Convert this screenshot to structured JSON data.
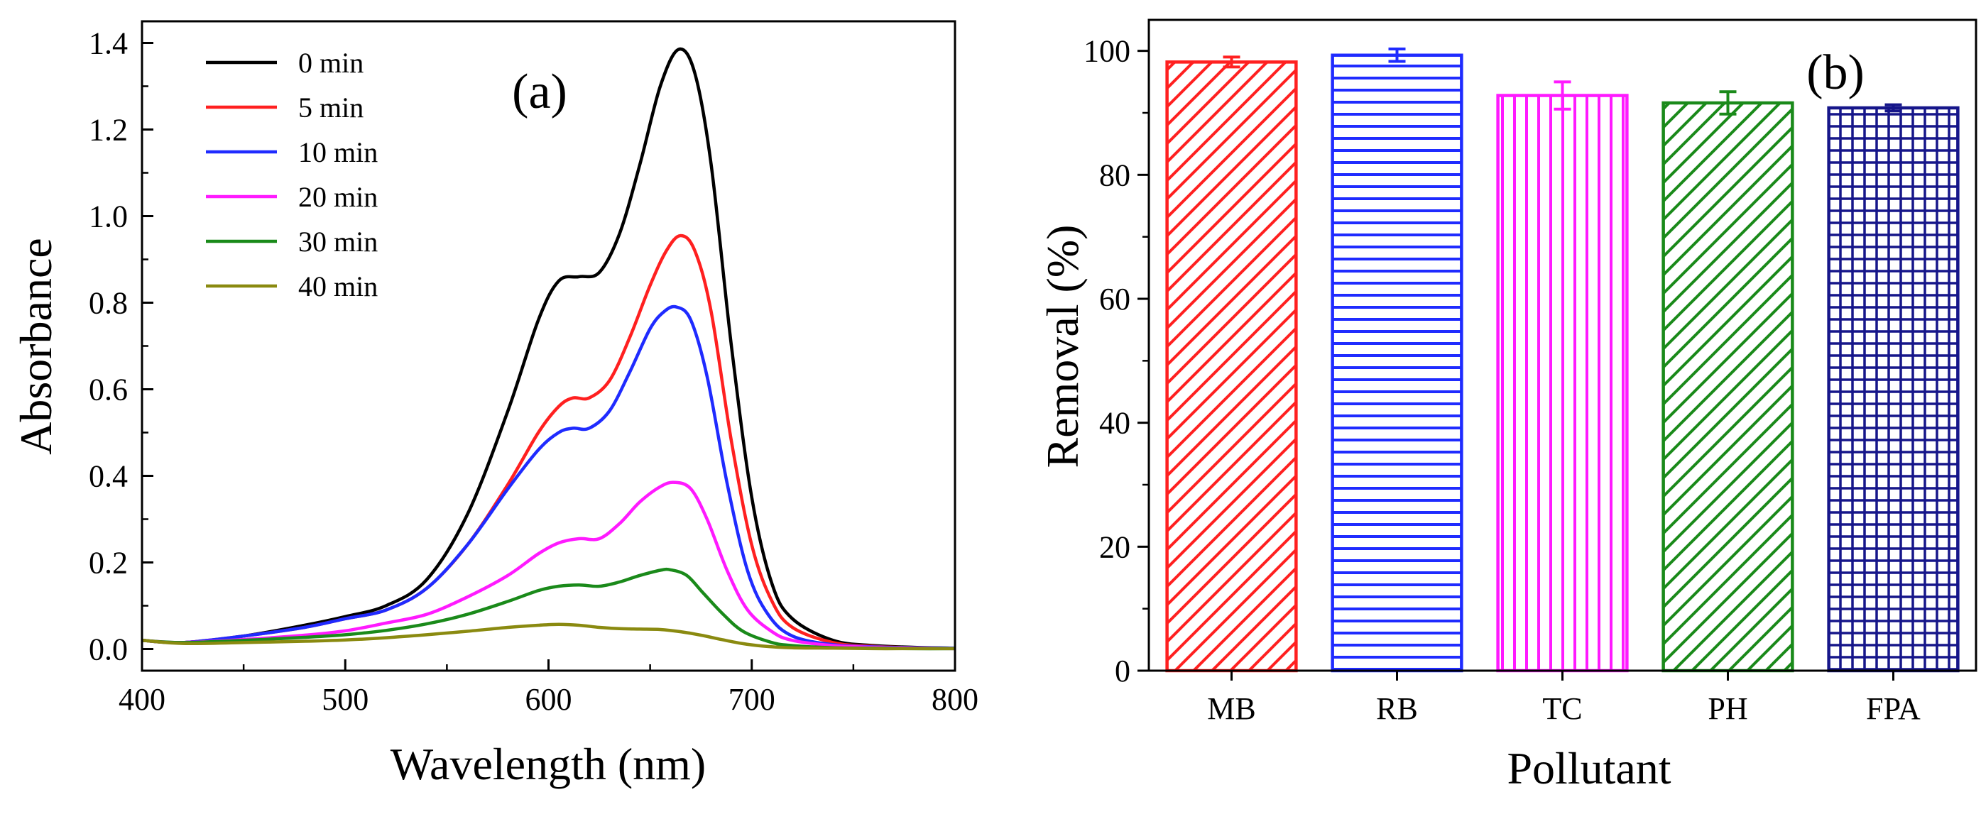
{
  "chart_data": [
    {
      "type": "line",
      "panel_label": "(a)",
      "title": "",
      "xlabel": "Wavelength (nm)",
      "ylabel": "Absorbance",
      "xlim": [
        400,
        800
      ],
      "ylim": [
        -0.05,
        1.45
      ],
      "xticks": [
        400,
        500,
        600,
        700,
        800
      ],
      "yticks": [
        0.0,
        0.2,
        0.4,
        0.6,
        0.8,
        1.0,
        1.2,
        1.4
      ],
      "xtick_labels": [
        "400",
        "500",
        "600",
        "700",
        "800"
      ],
      "ytick_labels": [
        "0.0",
        "0.2",
        "0.4",
        "0.6",
        "0.8",
        "1.0",
        "1.2",
        "1.4"
      ],
      "legend_position": "top-left",
      "series": [
        {
          "name": "0 min",
          "color": "#000000",
          "x": [
            400,
            420,
            450,
            480,
            500,
            520,
            540,
            560,
            580,
            595,
            605,
            615,
            625,
            635,
            645,
            655,
            664,
            672,
            680,
            690,
            700,
            710,
            720,
            740,
            760,
            780,
            800
          ],
          "y": [
            0.02,
            0.015,
            0.03,
            0.055,
            0.075,
            0.1,
            0.16,
            0.31,
            0.55,
            0.76,
            0.85,
            0.86,
            0.87,
            0.96,
            1.12,
            1.3,
            1.385,
            1.33,
            1.12,
            0.7,
            0.35,
            0.15,
            0.07,
            0.02,
            0.008,
            0.004,
            0.002
          ]
        },
        {
          "name": "5 min",
          "color": "#ff2020",
          "x": [
            400,
            420,
            450,
            480,
            500,
            520,
            540,
            560,
            580,
            595,
            605,
            612,
            620,
            630,
            640,
            650,
            658,
            665,
            672,
            680,
            690,
            700,
            710,
            720,
            740,
            760,
            780,
            800
          ],
          "y": [
            0.02,
            0.015,
            0.03,
            0.05,
            0.07,
            0.09,
            0.14,
            0.24,
            0.38,
            0.5,
            0.56,
            0.58,
            0.58,
            0.62,
            0.72,
            0.84,
            0.92,
            0.955,
            0.92,
            0.78,
            0.48,
            0.24,
            0.11,
            0.05,
            0.015,
            0.006,
            0.003,
            0.002
          ]
        },
        {
          "name": "10 min",
          "color": "#1f2bff",
          "x": [
            400,
            420,
            450,
            480,
            500,
            520,
            540,
            560,
            580,
            595,
            605,
            612,
            620,
            630,
            640,
            650,
            657,
            663,
            670,
            678,
            688,
            698,
            708,
            720,
            740,
            760,
            780,
            800
          ],
          "y": [
            0.02,
            0.015,
            0.03,
            0.05,
            0.07,
            0.09,
            0.14,
            0.24,
            0.37,
            0.46,
            0.5,
            0.51,
            0.51,
            0.55,
            0.64,
            0.74,
            0.78,
            0.79,
            0.76,
            0.63,
            0.38,
            0.18,
            0.08,
            0.03,
            0.01,
            0.005,
            0.003,
            0.002
          ]
        },
        {
          "name": "20 min",
          "color": "#ff1aff",
          "x": [
            400,
            420,
            450,
            480,
            500,
            520,
            540,
            560,
            580,
            595,
            605,
            615,
            625,
            635,
            645,
            655,
            662,
            670,
            678,
            688,
            698,
            710,
            720,
            740,
            760,
            780,
            800
          ],
          "y": [
            0.02,
            0.015,
            0.022,
            0.032,
            0.042,
            0.06,
            0.08,
            0.12,
            0.17,
            0.22,
            0.245,
            0.255,
            0.255,
            0.29,
            0.34,
            0.375,
            0.385,
            0.37,
            0.3,
            0.18,
            0.09,
            0.04,
            0.02,
            0.008,
            0.004,
            0.002,
            0.001
          ]
        },
        {
          "name": "30 min",
          "color": "#1a8a1a",
          "x": [
            400,
            420,
            450,
            480,
            500,
            520,
            540,
            560,
            580,
            595,
            605,
            615,
            625,
            635,
            645,
            655,
            660,
            668,
            676,
            686,
            696,
            710,
            720,
            740,
            760,
            780,
            800
          ],
          "y": [
            0.02,
            0.015,
            0.02,
            0.027,
            0.033,
            0.043,
            0.058,
            0.08,
            0.11,
            0.135,
            0.145,
            0.148,
            0.145,
            0.155,
            0.17,
            0.182,
            0.183,
            0.17,
            0.13,
            0.08,
            0.04,
            0.015,
            0.008,
            0.003,
            0.002,
            0.001,
            0.001
          ]
        },
        {
          "name": "40 min",
          "color": "#8a8a10",
          "x": [
            400,
            420,
            450,
            480,
            500,
            520,
            540,
            560,
            580,
            595,
            605,
            615,
            625,
            635,
            645,
            655,
            665,
            675,
            685,
            695,
            705,
            720,
            740,
            760,
            780,
            800
          ],
          "y": [
            0.02,
            0.013,
            0.015,
            0.018,
            0.021,
            0.026,
            0.033,
            0.041,
            0.05,
            0.055,
            0.057,
            0.055,
            0.05,
            0.047,
            0.046,
            0.045,
            0.04,
            0.032,
            0.022,
            0.013,
            0.007,
            0.003,
            0.002,
            0.001,
            0.001,
            0.001
          ]
        }
      ]
    },
    {
      "type": "bar",
      "panel_label": "(b)",
      "title": "",
      "xlabel": "Pollutant",
      "ylabel": "Removal (%)",
      "ylim": [
        0,
        105
      ],
      "yticks": [
        0,
        20,
        40,
        60,
        80,
        100
      ],
      "ytick_labels": [
        "0",
        "20",
        "40",
        "60",
        "80",
        "100"
      ],
      "categories": [
        "MB",
        "RB",
        "TC",
        "PH",
        "FPA"
      ],
      "values": [
        98.2,
        99.3,
        92.8,
        91.6,
        90.8
      ],
      "errors": [
        0.8,
        1.0,
        2.2,
        1.8,
        0.5
      ],
      "colors": [
        "#ff2020",
        "#1f2bff",
        "#ff1aff",
        "#1a8a1a",
        "#16168a"
      ],
      "patterns": [
        "diagonal",
        "horizontal",
        "vertical",
        "diagonal",
        "grid"
      ]
    }
  ]
}
